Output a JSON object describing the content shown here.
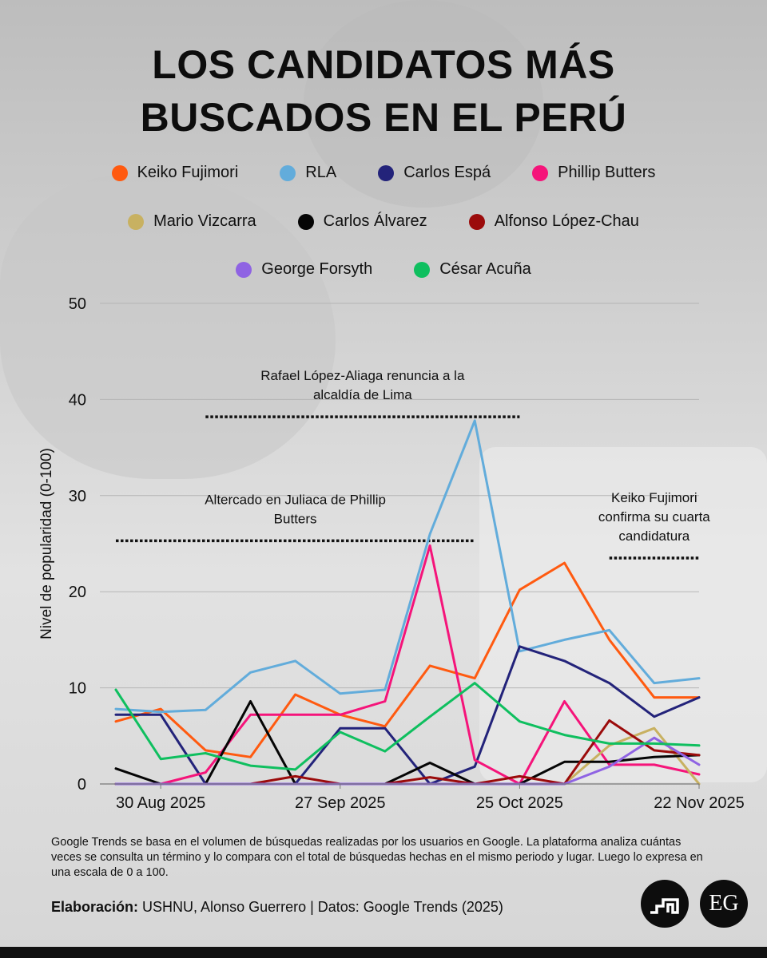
{
  "header": {
    "title_line1": "LOS CANDIDATOS MÁS",
    "title_line2": "BUSCADOS EN EL PERÚ"
  },
  "legend_rows": [
    [
      {
        "name": "Keiko Fujimori",
        "color": "#ff5a10"
      },
      {
        "name": "RLA",
        "color": "#62acdb"
      },
      {
        "name": "Carlos Espá",
        "color": "#23237a"
      },
      {
        "name": "Phillip Butters",
        "color": "#f5147a"
      }
    ],
    [
      {
        "name": "Mario Vizcarra",
        "color": "#c8b161"
      },
      {
        "name": "Carlos Álvarez",
        "color": "#050505"
      },
      {
        "name": "Alfonso López-Chau",
        "color": "#9b0b0b"
      }
    ],
    [
      {
        "name": "George Forsyth",
        "color": "#8f63e3"
      },
      {
        "name": "César Acuña",
        "color": "#0fbf5f"
      }
    ]
  ],
  "chart_data": {
    "type": "line",
    "ylabel": "Nivel de popularidad (0-100)",
    "xlabel": "",
    "ylim": [
      0,
      50
    ],
    "yticks": [
      0,
      10,
      20,
      30,
      40,
      50
    ],
    "grid": true,
    "x": [
      "23 Aug 2025",
      "30 Aug 2025",
      "6 Sep 2025",
      "13 Sep 2025",
      "20 Sep 2025",
      "27 Sep 2025",
      "4 Oct 2025",
      "11 Oct 2025",
      "18 Oct 2025",
      "25 Oct 2025",
      "1 Nov 2025",
      "8 Nov 2025",
      "15 Nov 2025",
      "22 Nov 2025"
    ],
    "x_tick_labels": [
      "30 Aug 2025",
      "27 Sep 2025",
      "25 Oct 2025",
      "22 Nov 2025"
    ],
    "series": [
      {
        "name": "Keiko Fujimori",
        "color": "#ff5a10",
        "values": [
          6.5,
          7.8,
          3.5,
          2.8,
          9.3,
          7.2,
          6.0,
          12.3,
          11.0,
          20.2,
          23.0,
          15.0,
          9.0,
          9.0
        ]
      },
      {
        "name": "RLA",
        "color": "#62acdb",
        "values": [
          7.8,
          7.5,
          7.7,
          11.6,
          12.8,
          9.4,
          9.8,
          26.0,
          37.8,
          13.8,
          15.0,
          16.0,
          10.5,
          11.0
        ]
      },
      {
        "name": "Carlos Espá",
        "color": "#23237a",
        "values": [
          7.2,
          7.2,
          0.0,
          0.0,
          0.0,
          5.8,
          5.8,
          0.0,
          1.8,
          14.3,
          12.8,
          10.5,
          7.0,
          9.0
        ]
      },
      {
        "name": "Phillip Butters",
        "color": "#f5147a",
        "values": [
          0.0,
          0.0,
          1.2,
          7.2,
          7.2,
          7.2,
          8.6,
          24.8,
          2.5,
          0.0,
          8.6,
          2.0,
          2.0,
          1.0
        ]
      },
      {
        "name": "Mario Vizcarra",
        "color": "#c8b161",
        "values": [
          0.0,
          0.0,
          0.0,
          0.0,
          0.0,
          0.0,
          0.0,
          0.0,
          0.0,
          0.0,
          0.0,
          4.0,
          5.8,
          0.0
        ]
      },
      {
        "name": "Carlos Álvarez",
        "color": "#050505",
        "values": [
          1.6,
          0.0,
          0.0,
          8.6,
          0.0,
          0.0,
          0.0,
          2.2,
          0.0,
          0.0,
          2.3,
          2.3,
          2.8,
          3.0
        ]
      },
      {
        "name": "Alfonso López-Chau",
        "color": "#9b0b0b",
        "values": [
          0.0,
          0.0,
          0.0,
          0.0,
          0.8,
          0.0,
          0.0,
          0.7,
          0.0,
          0.8,
          0.0,
          6.6,
          3.5,
          3.0
        ]
      },
      {
        "name": "George Forsyth",
        "color": "#8f63e3",
        "values": [
          0.0,
          0.0,
          0.0,
          0.0,
          0.0,
          0.0,
          0.0,
          0.0,
          0.0,
          0.0,
          0.0,
          1.8,
          4.8,
          2.0
        ]
      },
      {
        "name": "César Acuña",
        "color": "#0fbf5f",
        "values": [
          9.8,
          2.6,
          3.2,
          1.9,
          1.5,
          5.4,
          3.4,
          7.0,
          10.5,
          6.5,
          5.1,
          4.2,
          4.2,
          4.0
        ]
      }
    ],
    "annotations": [
      {
        "lines": [
          "Rafael López-Aliaga renuncia a la",
          "alcaldía de Lima"
        ],
        "from": "6 Sep 2025",
        "to": "25 Oct 2025",
        "y": 38.2
      },
      {
        "lines": [
          "Altercado en Juliaca de Phillip",
          "Butters"
        ],
        "from": "23 Aug 2025",
        "to": "18 Oct 2025",
        "y": 25.3
      },
      {
        "lines": [
          "Keiko Fujimori",
          "confirma su cuarta",
          "candidatura"
        ],
        "from": "8 Nov 2025",
        "to": "22 Nov 2025",
        "y": 23.5
      }
    ]
  },
  "footer": {
    "footnote": "Google Trends se basa en el volumen de búsquedas realizadas por los usuarios en Google. La plataforma analiza cuántas veces se consulta un término  y lo compara con el total de búsquedas hechas en el mismo periodo y lugar. Luego lo expresa en una escala de 0 a 100.",
    "credits_label": "Elaboración:",
    "credits_text": " USHNU, Alonso Guerrero | Datos: Google Trends (2025)",
    "logo_eg": "EG"
  }
}
